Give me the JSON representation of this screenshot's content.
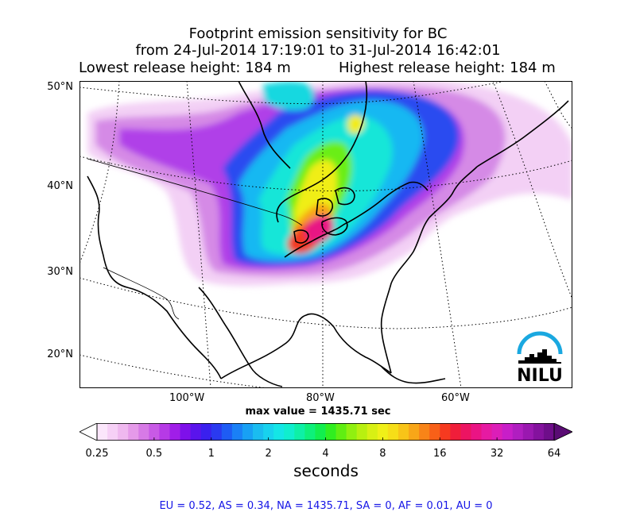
{
  "title": {
    "line1": "Footprint emission sensitivity for BC",
    "line2": "from 24-Jul-2014 17:19:01 to 31-Jul-2014 16:42:01",
    "lowest": "Lowest release height: 184 m",
    "highest": "Highest release height: 184 m"
  },
  "map": {
    "lat_labels": [
      "50°N",
      "40°N",
      "30°N",
      "20°N"
    ],
    "lon_labels": [
      "100°W",
      "80°W",
      "60°W"
    ],
    "gridlines": "dotted",
    "logo_text": "NILU",
    "max_value_text": "max value = 1435.71 sec"
  },
  "colorbar": {
    "tick_labels": [
      "0.25",
      "0.5",
      "1",
      "2",
      "4",
      "8",
      "16",
      "32",
      "64"
    ],
    "unit": "seconds",
    "colors": [
      "#fbe6fb",
      "#f6d0f6",
      "#efb8ef",
      "#e59ae9",
      "#d77ae6",
      "#c85ae6",
      "#b63ae6",
      "#a01ee8",
      "#7e10ea",
      "#5a14ec",
      "#3a20ee",
      "#2a3af0",
      "#1e5cf4",
      "#1a80f6",
      "#18a0f4",
      "#1abcf0",
      "#18d2ee",
      "#14e6e6",
      "#10eece",
      "#0ef0a6",
      "#0ef07a",
      "#12ee4e",
      "#30ee20",
      "#60ee12",
      "#90f010",
      "#b8f010",
      "#d8f014",
      "#f0f018",
      "#f6de18",
      "#f8c418",
      "#f8a618",
      "#f88418",
      "#f86018",
      "#f63a20",
      "#f01e3a",
      "#ec1462",
      "#ea1484",
      "#e61aa2",
      "#dc1eb8",
      "#c81ec8",
      "#b01ec0",
      "#9a18b0",
      "#84129e",
      "#6e0e8a"
    ],
    "extend_left_color": "#ffffff",
    "extend_right_color": "#5a0c74"
  },
  "footer": "EU = 0.52,  AS = 0.34,  NA = 1435.71,  SA = 0,  AF = 0.01,  AU = 0",
  "logo_colors": {
    "arc": "#1aa8e0",
    "skyline": "#000000"
  }
}
